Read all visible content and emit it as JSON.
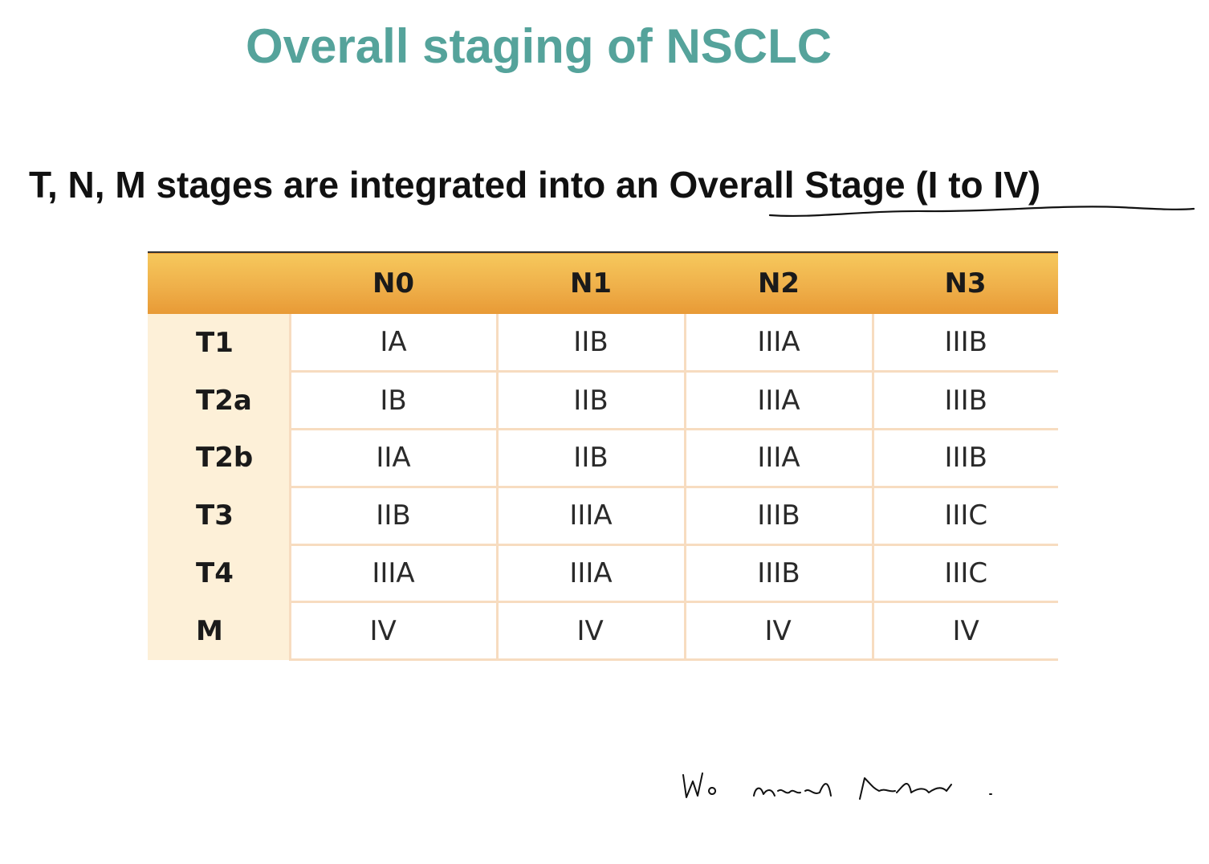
{
  "title": "Overall staging of NSCLC",
  "subtitle": {
    "prefix": "T, N, M stages are integrated into an ",
    "emphasis": "Overall Stage (I to IV)"
  },
  "table": {
    "corner": "",
    "columns": [
      "N0",
      "N1",
      "N2",
      "N3"
    ],
    "rows": [
      {
        "label": "T1",
        "cells": [
          "IA",
          "IIB",
          "IIIA",
          "IIIB"
        ]
      },
      {
        "label": "T2a",
        "cells": [
          "IB",
          "IIB",
          "IIIA",
          "IIIB"
        ]
      },
      {
        "label": "T2b",
        "cells": [
          "IIA",
          "IIB",
          "IIIA",
          "IIIB"
        ]
      },
      {
        "label": "T3",
        "cells": [
          "IIB",
          "IIIA",
          "IIIB",
          "IIIC"
        ]
      },
      {
        "label": "T4",
        "cells": [
          "IIIA",
          "IIIA",
          "IIIB",
          "IIIC"
        ]
      },
      {
        "label": "M",
        "cells": [
          "IV",
          "IV",
          "IV",
          "IV"
        ]
      }
    ]
  },
  "annotation": {
    "handwritten_note": "No need render."
  },
  "colors": {
    "title": "#55a39b",
    "header_band": "#efb04a",
    "row_label_band": "#fdf0d8",
    "grid_lines": "#f7dcc0"
  }
}
